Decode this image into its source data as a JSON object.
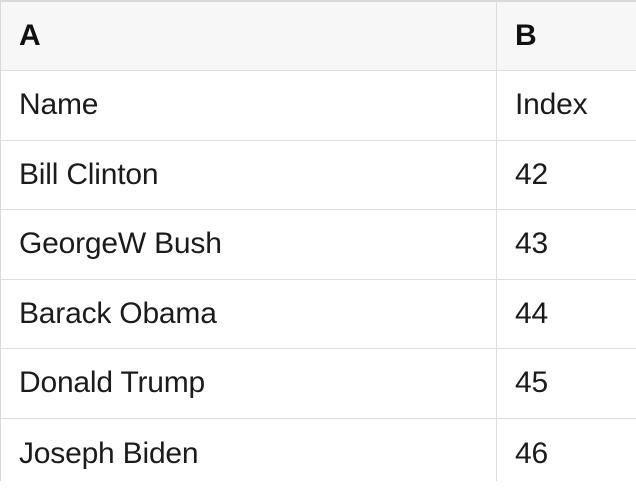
{
  "table": {
    "columns": [
      {
        "letter": "A"
      },
      {
        "letter": "B"
      }
    ],
    "rows": [
      {
        "a": "Name",
        "b": "Index"
      },
      {
        "a": "Bill Clinton",
        "b": "42"
      },
      {
        "a": "GeorgeW Bush",
        "b": "43"
      },
      {
        "a": "Barack Obama",
        "b": "44"
      },
      {
        "a": "Donald Trump",
        "b": "45"
      },
      {
        "a": "Joseph Biden",
        "b": "46"
      }
    ],
    "colors": {
      "header_background": "#f7f7f7",
      "outer_border": "#d9d9d9",
      "grid_border": "#dedede",
      "text": "#1b1b1b"
    }
  }
}
